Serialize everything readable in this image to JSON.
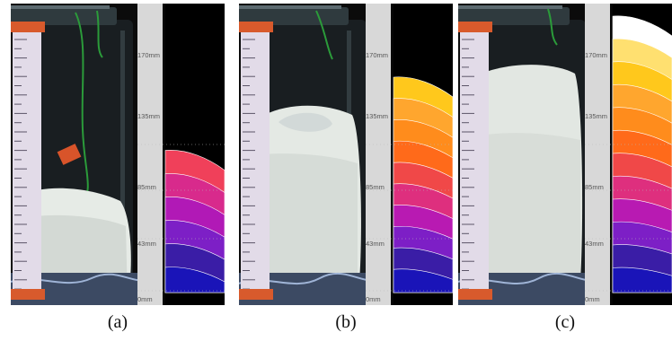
{
  "figure": {
    "panels": [
      {
        "caption": "(a)",
        "scale_ticks": [
          "170mm",
          "135mm",
          "85mm",
          "43mm",
          "0mm"
        ],
        "fill_height_mm": 92,
        "layer_colors": [
          "#f0405a",
          "#d82a8c",
          "#b119b6",
          "#7d1fc6",
          "#3a1da6",
          "#1a14b8"
        ]
      },
      {
        "caption": "(b)",
        "scale_ticks": [
          "170mm",
          "135mm",
          "85mm",
          "43mm",
          "0mm"
        ],
        "fill_height_mm": 140,
        "layer_colors": [
          "#ffc81c",
          "#ffa62e",
          "#ff8c1c",
          "#ff6a1a",
          "#f04848",
          "#de2f7e",
          "#b81ab2",
          "#7d1fc6",
          "#3a1da6",
          "#1a14b8"
        ]
      },
      {
        "caption": "(c)",
        "scale_ticks": [
          "170mm",
          "135mm",
          "85mm",
          "43mm",
          "0mm"
        ],
        "fill_height_mm": 180,
        "layer_colors": [
          "#ffffff",
          "#ffe070",
          "#ffc81c",
          "#ffa62e",
          "#ff8c1c",
          "#ff6a1a",
          "#f04848",
          "#de2f7e",
          "#b81ab2",
          "#7d1fc6",
          "#3a1da6",
          "#1a14b8"
        ]
      }
    ]
  }
}
